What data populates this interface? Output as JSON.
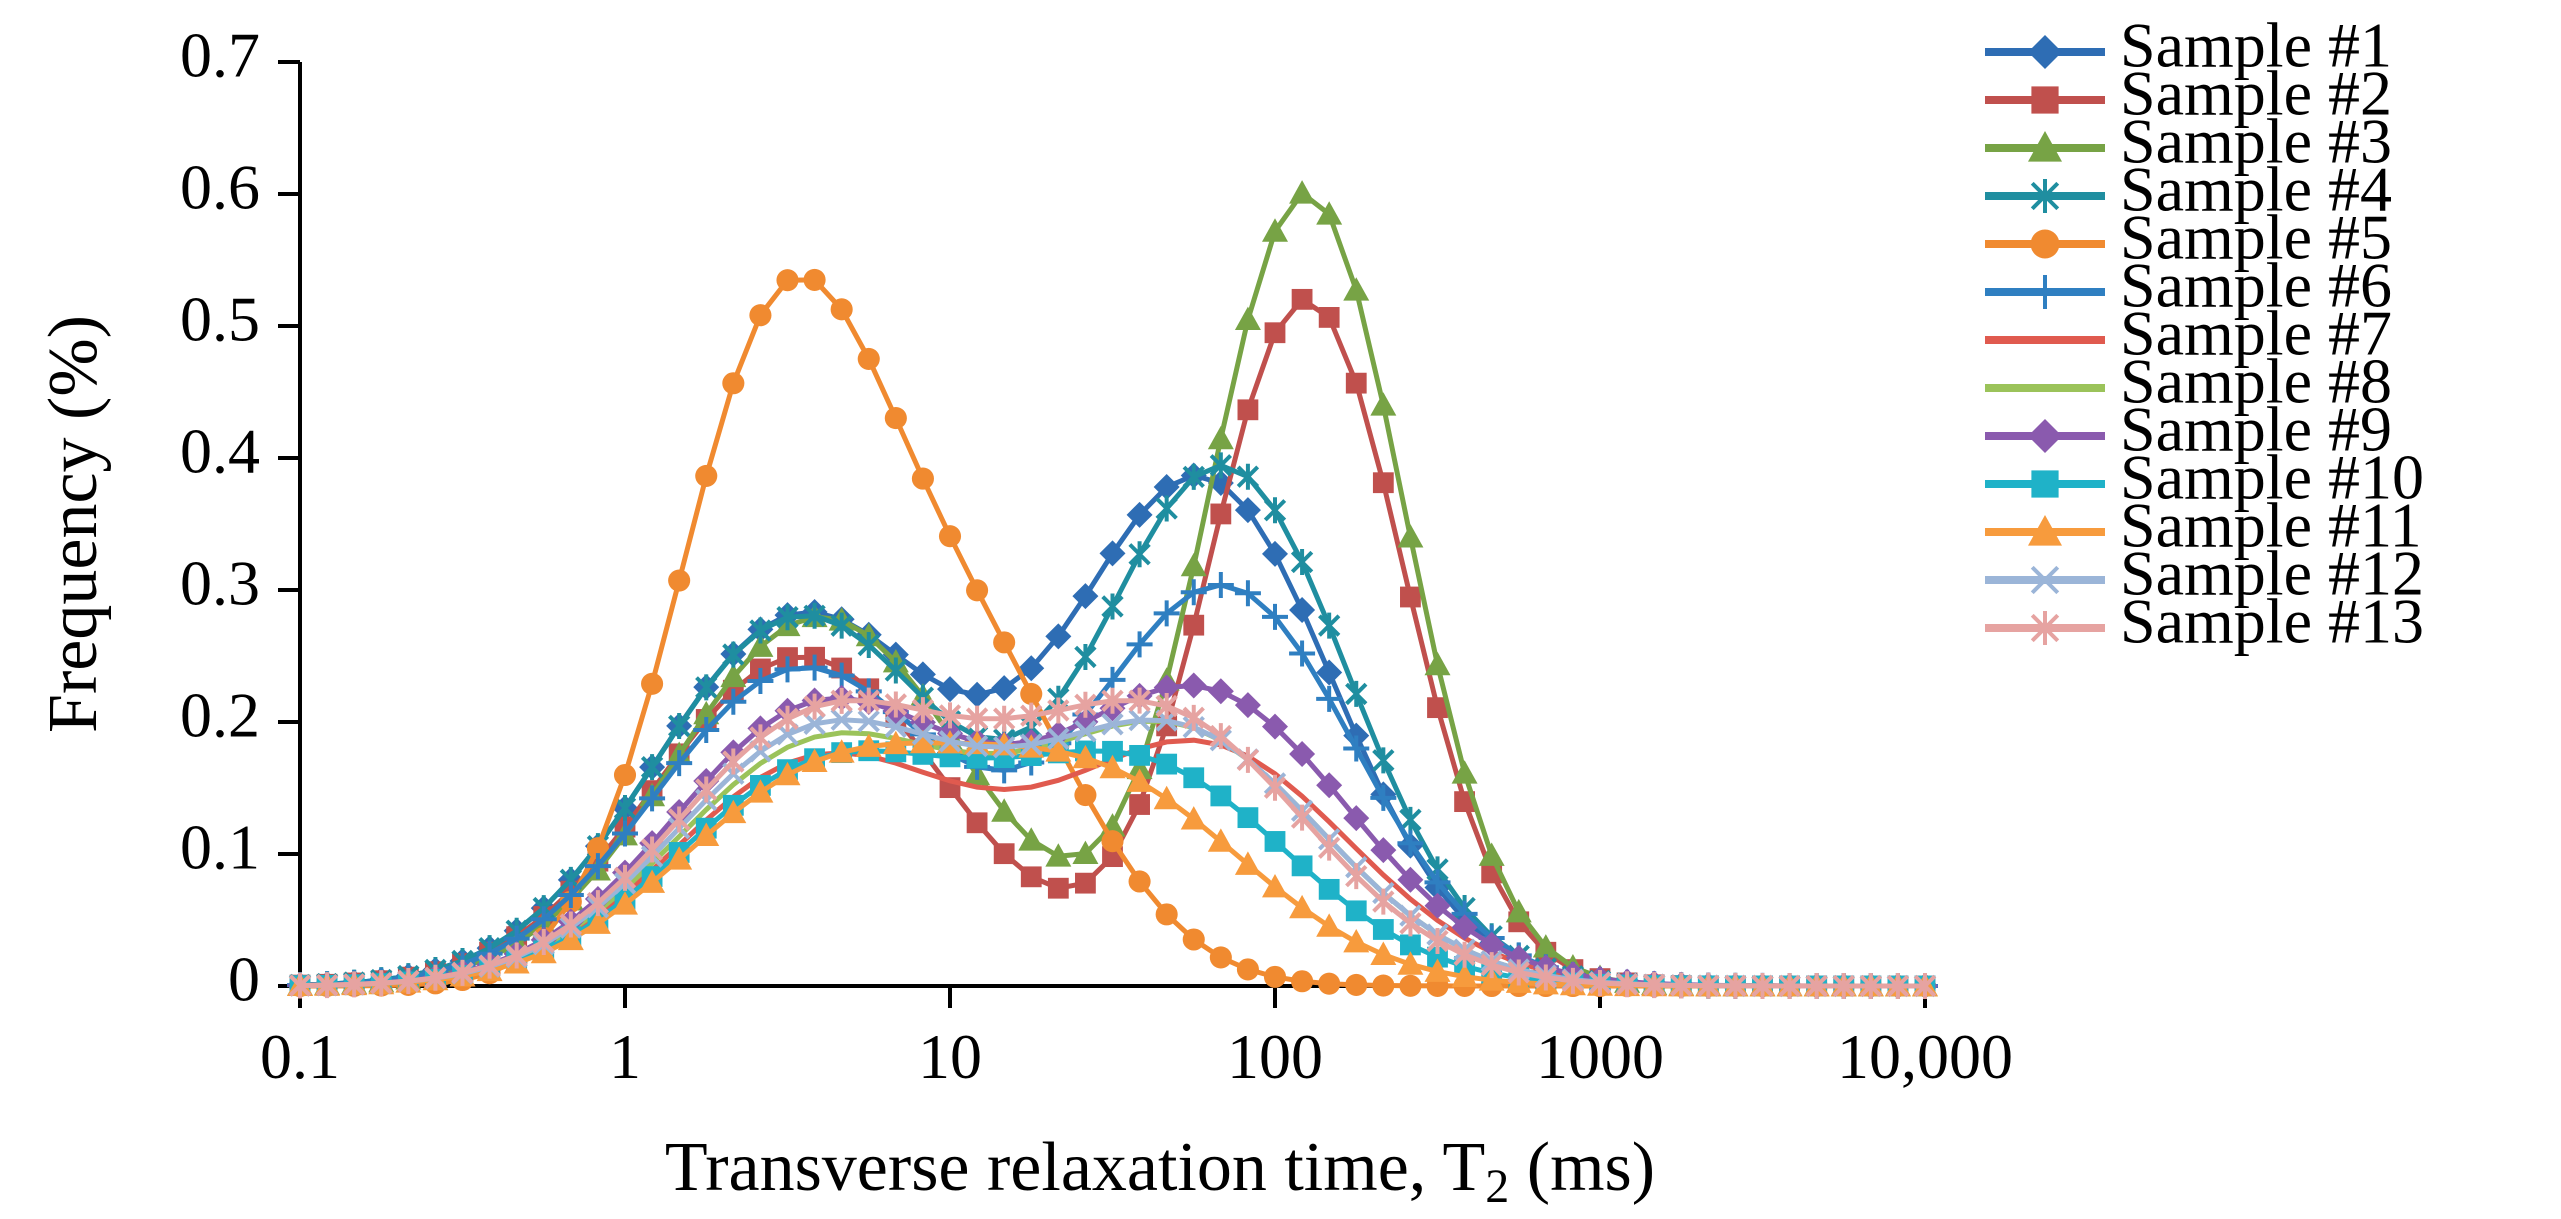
{
  "chart_data": {
    "type": "line",
    "title": "",
    "xlabel": "Transverse relaxation time, T",
    "xlabel_subscript": "2",
    "xlabel_suffix": " (ms)",
    "ylabel": "Frequency (%)",
    "xscale": "log",
    "xlim": [
      0.1,
      10000
    ],
    "ylim": [
      0,
      0.7
    ],
    "x_ticks": [
      0.1,
      1,
      10,
      100,
      1000,
      10000
    ],
    "x_tick_labels": [
      "0.1",
      "1",
      "10",
      "100",
      "1000",
      "10,000"
    ],
    "y_ticks": [
      0,
      0.1,
      0.2,
      0.3,
      0.4,
      0.5,
      0.6,
      0.7
    ],
    "y_tick_labels": [
      "0",
      "0.1",
      "0.2",
      "0.3",
      "0.4",
      "0.5",
      "0.6",
      "0.7"
    ],
    "grid": false,
    "legend_position": "right",
    "series": [
      {
        "name": "Sample #1",
        "color": "#2E6DB4",
        "marker": "diamond",
        "peaks": [
          {
            "x": 3.5,
            "h": 0.28,
            "w": 0.45
          },
          {
            "x": 60,
            "h": 0.38,
            "w": 0.4
          }
        ]
      },
      {
        "name": "Sample #2",
        "color": "#C0504D",
        "marker": "square",
        "peaks": [
          {
            "x": 3.5,
            "h": 0.25,
            "w": 0.45
          },
          {
            "x": 125,
            "h": 0.52,
            "w": 0.3
          }
        ]
      },
      {
        "name": "Sample #3",
        "color": "#77A345",
        "marker": "triangle",
        "peaks": [
          {
            "x": 4.0,
            "h": 0.28,
            "w": 0.45
          },
          {
            "x": 125,
            "h": 0.6,
            "w": 0.3
          }
        ]
      },
      {
        "name": "Sample #4",
        "color": "#1F8EA0",
        "marker": "asterisk",
        "peaks": [
          {
            "x": 3.5,
            "h": 0.28,
            "w": 0.45
          },
          {
            "x": 70,
            "h": 0.39,
            "w": 0.38
          }
        ]
      },
      {
        "name": "Sample #5",
        "color": "#F08A30",
        "marker": "circle",
        "peaks": [
          {
            "x": 3.0,
            "h": 0.48,
            "w": 0.32
          },
          {
            "x": 12,
            "h": 0.22,
            "w": 0.35
          }
        ]
      },
      {
        "name": "Sample #6",
        "color": "#2F7FC1",
        "marker": "plus",
        "peaks": [
          {
            "x": 3.5,
            "h": 0.24,
            "w": 0.45
          },
          {
            "x": 70,
            "h": 0.3,
            "w": 0.4
          }
        ]
      },
      {
        "name": "Sample #7",
        "color": "#E05A4F",
        "marker": "none",
        "peaks": [
          {
            "x": 4.0,
            "h": 0.17,
            "w": 0.45
          },
          {
            "x": 60,
            "h": 0.18,
            "w": 0.45
          }
        ]
      },
      {
        "name": "Sample #8",
        "color": "#9BC35A",
        "marker": "none",
        "peaks": [
          {
            "x": 4.0,
            "h": 0.18,
            "w": 0.45
          },
          {
            "x": 50,
            "h": 0.19,
            "w": 0.45
          }
        ]
      },
      {
        "name": "Sample #9",
        "color": "#8A5AAE",
        "marker": "diamond",
        "peaks": [
          {
            "x": 4.0,
            "h": 0.21,
            "w": 0.45
          },
          {
            "x": 60,
            "h": 0.22,
            "w": 0.45
          }
        ]
      },
      {
        "name": "Sample #10",
        "color": "#1FB2C8",
        "marker": "square",
        "peaks": [
          {
            "x": 4.0,
            "h": 0.16,
            "w": 0.45
          },
          {
            "x": 40,
            "h": 0.16,
            "w": 0.45
          }
        ]
      },
      {
        "name": "Sample #11",
        "color": "#F79B3D",
        "marker": "triangle",
        "peaks": [
          {
            "x": 4.0,
            "h": 0.15,
            "w": 0.45
          },
          {
            "x": 30,
            "h": 0.145,
            "w": 0.45
          }
        ]
      },
      {
        "name": "Sample #12",
        "color": "#9BB5D8",
        "marker": "x",
        "peaks": [
          {
            "x": 4.0,
            "h": 0.19,
            "w": 0.45
          },
          {
            "x": 50,
            "h": 0.19,
            "w": 0.45
          }
        ]
      },
      {
        "name": "Sample #13",
        "color": "#E6A3A1",
        "marker": "asterisk",
        "peaks": [
          {
            "x": 4.0,
            "h": 0.2,
            "w": 0.45
          },
          {
            "x": 45,
            "h": 0.2,
            "w": 0.45
          }
        ]
      }
    ]
  }
}
